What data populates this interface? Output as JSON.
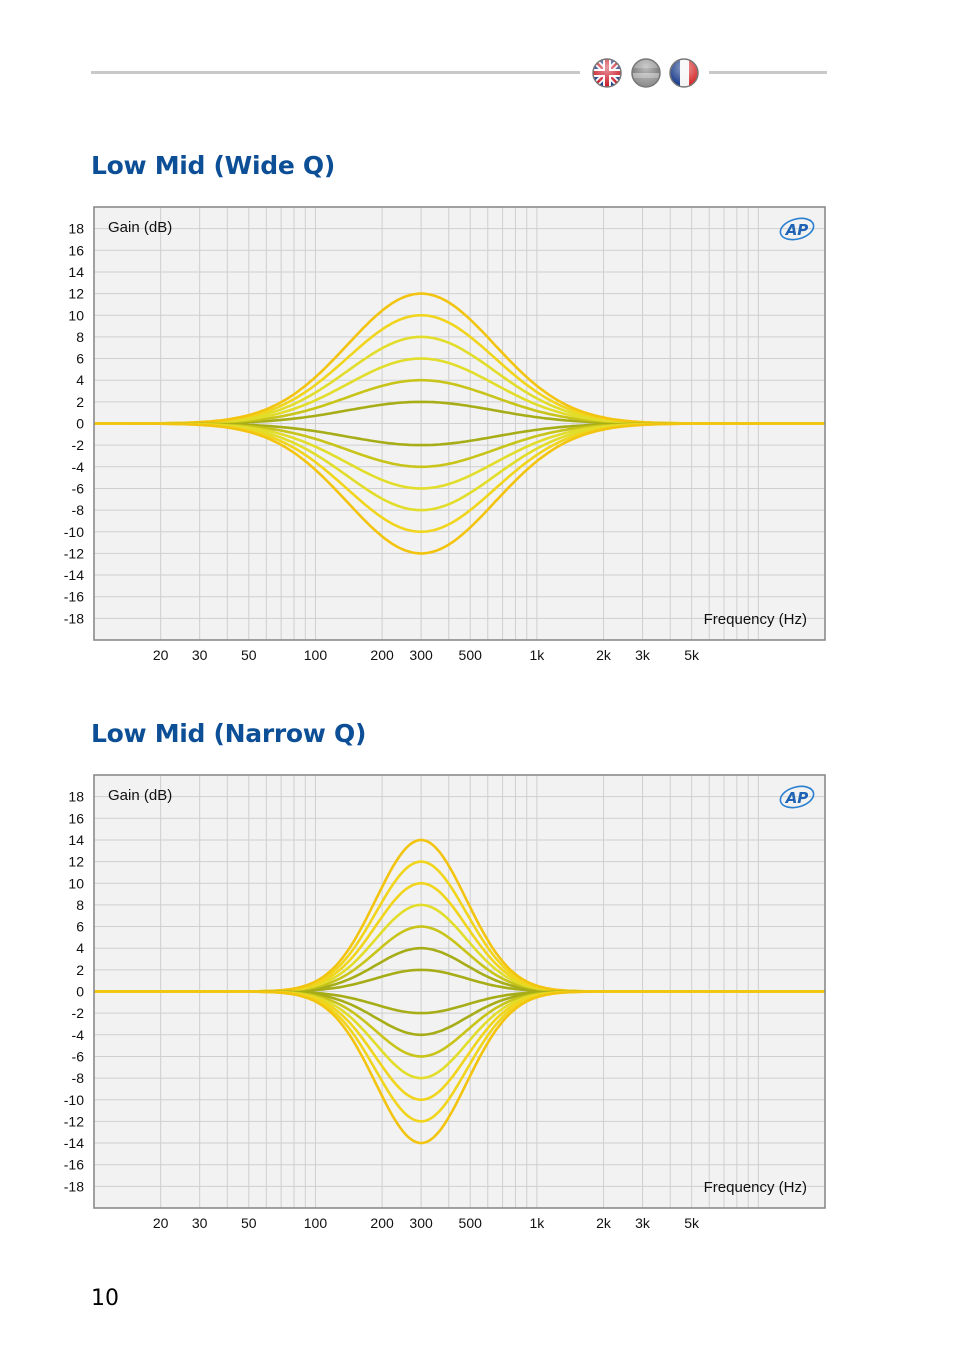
{
  "header": {
    "flag_icons": [
      "uk-flag-icon",
      "german-flag-icon",
      "french-flag-icon"
    ],
    "flag_colors": {
      "uk_blue": "#1f3f8f",
      "uk_red": "#cc1f2d",
      "fr_blue": "#1a3c8c",
      "fr_red": "#d42a2a"
    }
  },
  "page_number": "10",
  "brand_logo_text": "AP",
  "colors": {
    "title": "#0d4f96",
    "plot_bg": "#f2f2f2",
    "grid": "#cfcfcf",
    "frame": "#8a8a8a",
    "curve_colors": [
      "#7f9a14",
      "#a6ad17",
      "#c8c41a",
      "#e2dd2a",
      "#f0d51c",
      "#f2c410"
    ]
  },
  "chart_data": [
    {
      "section_title": "Low Mid (Wide Q)",
      "type": "line",
      "ylabel": "Gain (dB)",
      "xlabel": "Frequency (Hz)",
      "xscale": "log",
      "xlim": [
        10,
        20000
      ],
      "ylim": [
        -20,
        20
      ],
      "grid": true,
      "yticks": [
        "18",
        "16",
        "14",
        "12",
        "10",
        "8",
        "6",
        "4",
        "2",
        "0",
        "-2",
        "-4",
        "-6",
        "-8",
        "-10",
        "-12",
        "-14",
        "-16",
        "-18"
      ],
      "xticks": [
        "20",
        "30",
        "50",
        "100",
        "200",
        "300",
        "500",
        "1k",
        "2k",
        "3k",
        "5k"
      ],
      "center_frequency": 300,
      "bandwidth_octaves": 2.6,
      "peak_gains": [
        2,
        4,
        6,
        8,
        10,
        12,
        -2,
        -4,
        -6,
        -8,
        -10,
        -12
      ]
    },
    {
      "section_title": "Low Mid (Narrow Q)",
      "type": "line",
      "ylabel": "Gain (dB)",
      "xlabel": "Frequency (Hz)",
      "xscale": "log",
      "xlim": [
        10,
        20000
      ],
      "ylim": [
        -20,
        20
      ],
      "grid": true,
      "yticks": [
        "18",
        "16",
        "14",
        "12",
        "10",
        "8",
        "6",
        "4",
        "2",
        "0",
        "-2",
        "-4",
        "-6",
        "-8",
        "-10",
        "-12",
        "-14",
        "-16",
        "-18"
      ],
      "xticks": [
        "20",
        "30",
        "50",
        "100",
        "200",
        "300",
        "500",
        "1k",
        "2k",
        "3k",
        "5k"
      ],
      "center_frequency": 300,
      "bandwidth_octaves": 1.6,
      "peak_gains": [
        2,
        4,
        6,
        8,
        10,
        12,
        14,
        -2,
        -4,
        -6,
        -8,
        -10,
        -12,
        -14
      ]
    }
  ]
}
